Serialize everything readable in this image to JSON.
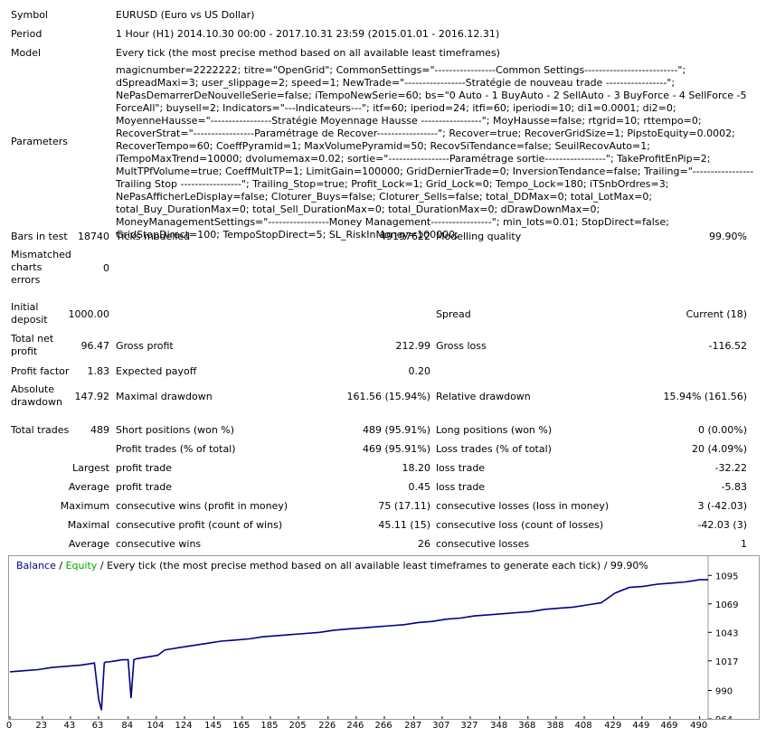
{
  "header": {
    "symbol_label": "Symbol",
    "symbol_value": "EURUSD (Euro vs US Dollar)",
    "period_label": "Period",
    "period_value": "1 Hour (H1) 2014.10.30 00:00 - 2017.10.31 23:59 (2015.01.01 - 2016.12.31)",
    "model_label": "Model",
    "model_value": "Every tick (the most precise method based on all available least timeframes)",
    "parameters_label": "Parameters",
    "parameters_value": "magicnumber=2222222; titre=\"OpenGrid\"; CommonSettings=\"-----------------Common Settings--------------------------\"; dSpreadMaxi=3; user_slippage=2; speed=1; NewTrade=\"-----------------Stratégie de nouveau trade -----------------\"; NePasDemarrerDeNouvelleSerie=false; iTempoNewSerie=60; bs=\"0 Auto - 1 BuyAuto - 2 SellAuto - 3 BuyForce - 4 SellForce -5 ForceAll\"; buysell=2; Indicators=\"---Indicateurs---\"; itf=60; iperiod=24; itfi=60; iperiodi=10; di1=0.0001; di2=0; MoyenneHausse=\"-----------------Stratégie Moyennage Hausse -----------------\"; MoyHausse=false; rtgrid=10; rttempo=0; RecoverStrat=\"-----------------Paramétrage de Recover-----------------\"; Recover=true; RecoverGridSize=1; PipstoEquity=0.0002; RecoverTempo=60; CoeffPyramid=1; MaxVolumePyramid=50; RecovSiTendance=false; SeuilRecovAuto=1; iTempoMaxTrend=10000; dvolumemax=0.02; sortie=\"-----------------Paramétrage sortie-----------------\"; TakeProfitEnPip=2; MultTPfVolume=true; CoeffMultTP=1; LimitGain=100000; GridDernierTrade=0; InversionTendance=false; Trailing=\"----------------- Trailing Stop -----------------\"; Trailing_Stop=true; Profit_Lock=1; Grid_Lock=0; Tempo_Lock=180; iTSnbOrdres=3; NePasAfficherLeDisplay=false; Cloturer_Buys=false; Cloturer_Sells=false; total_DDMax=0; total_LotMax=0; total_Buy_DurationMax=0; total_Sell_DurationMax=0; total_DurationMax=0; dDrawDownMax=0; MoneyManagementSettings=\"-----------------Money Management-----------------\"; min_lots=0.01; StopDirect=false; GridStopDirect=100; TempoStopDirect=5; SL_RiskInMoney=100000;"
  },
  "stats": {
    "bars_label": "Bars in test",
    "bars_value": "18740",
    "ticks_label": "Ticks modelled",
    "ticks_value": "49197622",
    "quality_label": "Modelling quality",
    "quality_value": "99.90%",
    "mismatched_label": "Mismatched charts errors",
    "mismatched_value": "0",
    "deposit_label": "Initial deposit",
    "deposit_value": "1000.00",
    "spread_label": "Spread",
    "spread_value": "Current (18)",
    "netprofit_label": "Total net profit",
    "netprofit_value": "96.47",
    "grossprofit_label": "Gross profit",
    "grossprofit_value": "212.99",
    "grossloss_label": "Gross loss",
    "grossloss_value": "-116.52",
    "pf_label": "Profit factor",
    "pf_value": "1.83",
    "payoff_label": "Expected payoff",
    "payoff_value": "0.20",
    "absdd_label": "Absolute drawdown",
    "absdd_value": "147.92",
    "maxdd_label": "Maximal drawdown",
    "maxdd_value": "161.56 (15.94%)",
    "reldd_label": "Relative drawdown",
    "reldd_value": "15.94% (161.56)",
    "trades_label": "Total trades",
    "trades_value": "489",
    "short_label": "Short positions (won %)",
    "short_value": "489 (95.91%)",
    "long_label": "Long positions (won %)",
    "long_value": "0 (0.00%)",
    "ptrades_label": "Profit trades (% of total)",
    "ptrades_value": "469 (95.91%)",
    "ltrades_label": "Loss trades (% of total)",
    "ltrades_value": "20 (4.09%)",
    "largest_label": "Largest",
    "largest_profit_label": "profit trade",
    "largest_profit_value": "18.20",
    "largest_loss_label": "loss trade",
    "largest_loss_value": "-32.22",
    "average_label": "Average",
    "average_profit_label": "profit trade",
    "average_profit_value": "0.45",
    "average_loss_label": "loss trade",
    "average_loss_value": "-5.83",
    "maximum_label": "Maximum",
    "max_wins_label": "consecutive wins (profit in money)",
    "max_wins_value": "75 (17.11)",
    "max_losses_label": "consecutive losses (loss in money)",
    "max_losses_value": "3 (-42.03)",
    "maximal_label": "Maximal",
    "maximal_profit_label": "consecutive profit (count of wins)",
    "maximal_profit_value": "45.11 (15)",
    "maximal_loss_label": "consecutive loss (count of losses)",
    "maximal_loss_value": "-42.03 (3)",
    "avg2_label": "Average",
    "avg_wins_label": "consecutive wins",
    "avg_wins_value": "26",
    "avg_losses_label": "consecutive losses",
    "avg_losses_value": "1"
  },
  "chart_legend": {
    "balance": "Balance",
    "sep1": " / ",
    "equity": "Equity",
    "rest": " / Every tick (the most precise method based on all available least timeframes to generate each tick) / 99.90%"
  },
  "chart_data": {
    "type": "line",
    "y_ticks": [
      "1095",
      "1069",
      "1043",
      "1017",
      "990",
      "964"
    ],
    "x_ticks": [
      "0",
      "23",
      "43",
      "63",
      "84",
      "104",
      "124",
      "145",
      "165",
      "185",
      "205",
      "226",
      "246",
      "266",
      "287",
      "307",
      "327",
      "348",
      "368",
      "388",
      "408",
      "429",
      "449",
      "469",
      "490"
    ],
    "ylim": [
      964,
      1101
    ],
    "xlim": [
      0,
      496
    ],
    "colors": {
      "balance": "#00008b",
      "equity": "#00aa00"
    },
    "series": [
      {
        "name": "Balance",
        "x": [
          0,
          10,
          20,
          30,
          40,
          50,
          55,
          60,
          63,
          65,
          67,
          68,
          70,
          75,
          80,
          84,
          86,
          88,
          90,
          100,
          105,
          110,
          115,
          120,
          130,
          140,
          150,
          160,
          170,
          180,
          190,
          200,
          210,
          220,
          230,
          240,
          250,
          260,
          270,
          280,
          290,
          300,
          310,
          320,
          330,
          340,
          350,
          360,
          370,
          380,
          390,
          400,
          410,
          420,
          430,
          440,
          450,
          460,
          470,
          480,
          490,
          496
        ],
        "y": [
          1007,
          1008,
          1009,
          1011,
          1012,
          1013,
          1014,
          1015,
          982,
          972,
          1015,
          1016,
          1016,
          1017,
          1018,
          1018,
          983,
          1018,
          1019,
          1021,
          1022,
          1027,
          1028,
          1029,
          1031,
          1033,
          1035,
          1036,
          1037,
          1039,
          1040,
          1041,
          1042,
          1043,
          1045,
          1046,
          1047,
          1048,
          1049,
          1050,
          1052,
          1053,
          1055,
          1056,
          1058,
          1059,
          1060,
          1061,
          1062,
          1064,
          1065,
          1066,
          1068,
          1070,
          1079,
          1084,
          1085,
          1087,
          1088,
          1089,
          1091,
          1091
        ]
      }
    ]
  }
}
